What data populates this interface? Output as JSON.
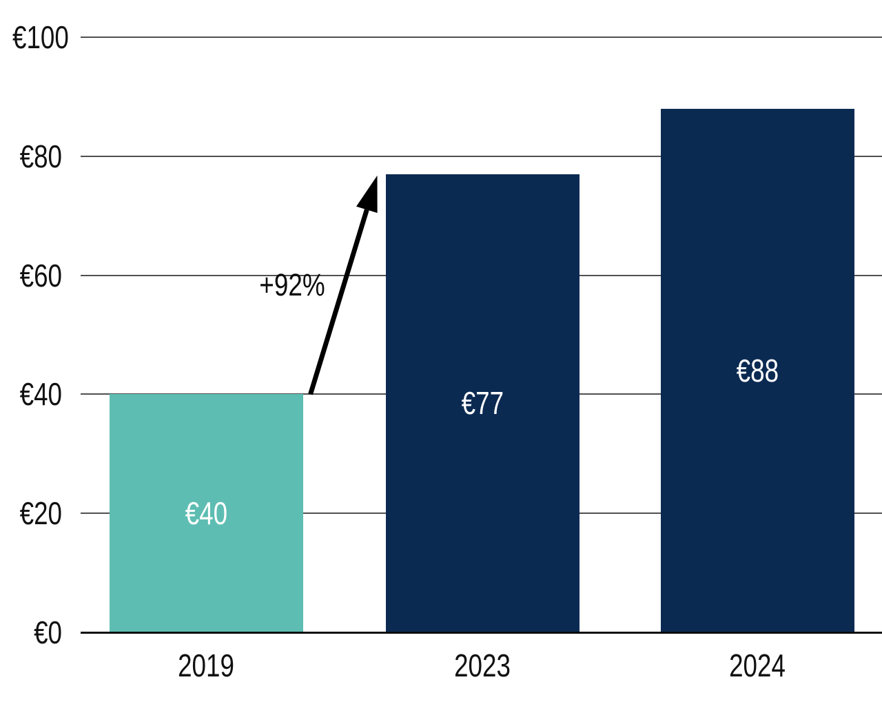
{
  "colors": {
    "background": "#ffffff",
    "teal": "#5EBDB2",
    "navy": "#0B2A52",
    "gridline": "#4f4f4f",
    "axis": "#0d0d0d",
    "label_dark": "#111111",
    "label_light": "#ffffff",
    "arrow": "#000000"
  },
  "chart_data": {
    "type": "bar",
    "title": "",
    "xlabel": "",
    "ylabel": "",
    "categories": [
      "2019",
      "2023",
      "2024"
    ],
    "values": [
      40,
      77,
      88
    ],
    "bar_labels": [
      "€40",
      "€77",
      "€88"
    ],
    "bar_colors": [
      "#5EBDB2",
      "#0B2A52",
      "#0B2A52"
    ],
    "currency_prefix": "€",
    "ylim": [
      0,
      100
    ],
    "yticks": [
      0,
      20,
      40,
      60,
      80,
      100
    ],
    "ytick_labels": [
      "€0",
      "€20",
      "€40",
      "€60",
      "€80",
      "€100"
    ],
    "grid": "horizontal",
    "legend": "none",
    "annotation": {
      "label": "+92%",
      "from_category": "2019",
      "from_value": 40,
      "to_category": "2023",
      "to_value": 77
    }
  }
}
